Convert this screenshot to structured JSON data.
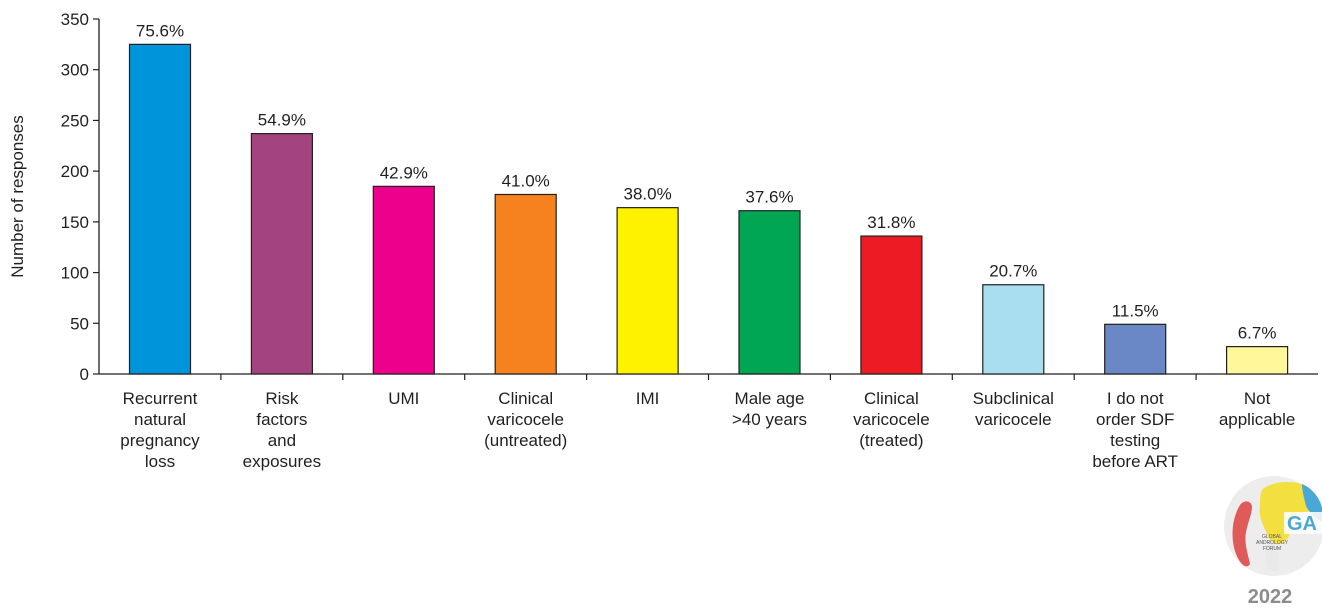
{
  "chart_data": {
    "type": "bar",
    "title": "",
    "xlabel": "",
    "ylabel": "Number of responses",
    "ylim": [
      0,
      350
    ],
    "yticks": [
      0,
      50,
      100,
      150,
      200,
      250,
      300,
      350
    ],
    "grid": false,
    "categories": [
      [
        "Recurrent",
        "natural",
        "pregnancy",
        "loss"
      ],
      [
        "Risk",
        "factors",
        "and",
        "exposures"
      ],
      [
        "UMI"
      ],
      [
        "Clinical",
        "varicocele",
        "(untreated)"
      ],
      [
        "IMI"
      ],
      [
        "Male age",
        ">40 years"
      ],
      [
        "Clinical",
        "varicocele",
        "(treated)"
      ],
      [
        "Subclinical",
        "varicocele"
      ],
      [
        "I do not",
        "order SDF",
        "testing",
        "before ART"
      ],
      [
        "Not",
        "applicable"
      ]
    ],
    "values": [
      325,
      237,
      185,
      177,
      164,
      161,
      136,
      88,
      49,
      27
    ],
    "data_labels": [
      "75.6%",
      "54.9%",
      "42.9%",
      "41.0%",
      "38.0%",
      "37.6%",
      "31.8%",
      "20.7%",
      "11.5%",
      "6.7%"
    ],
    "colors": [
      "#0095da",
      "#a4447f",
      "#ec008c",
      "#f5821f",
      "#fff200",
      "#00a651",
      "#ed1c24",
      "#a8def0",
      "#6a87c6",
      "#fff799"
    ]
  },
  "logo": {
    "text_lines": [
      "GLOBAL",
      "ANDROLOGY",
      "FORUM"
    ],
    "initials": "GA",
    "year": "2022"
  }
}
